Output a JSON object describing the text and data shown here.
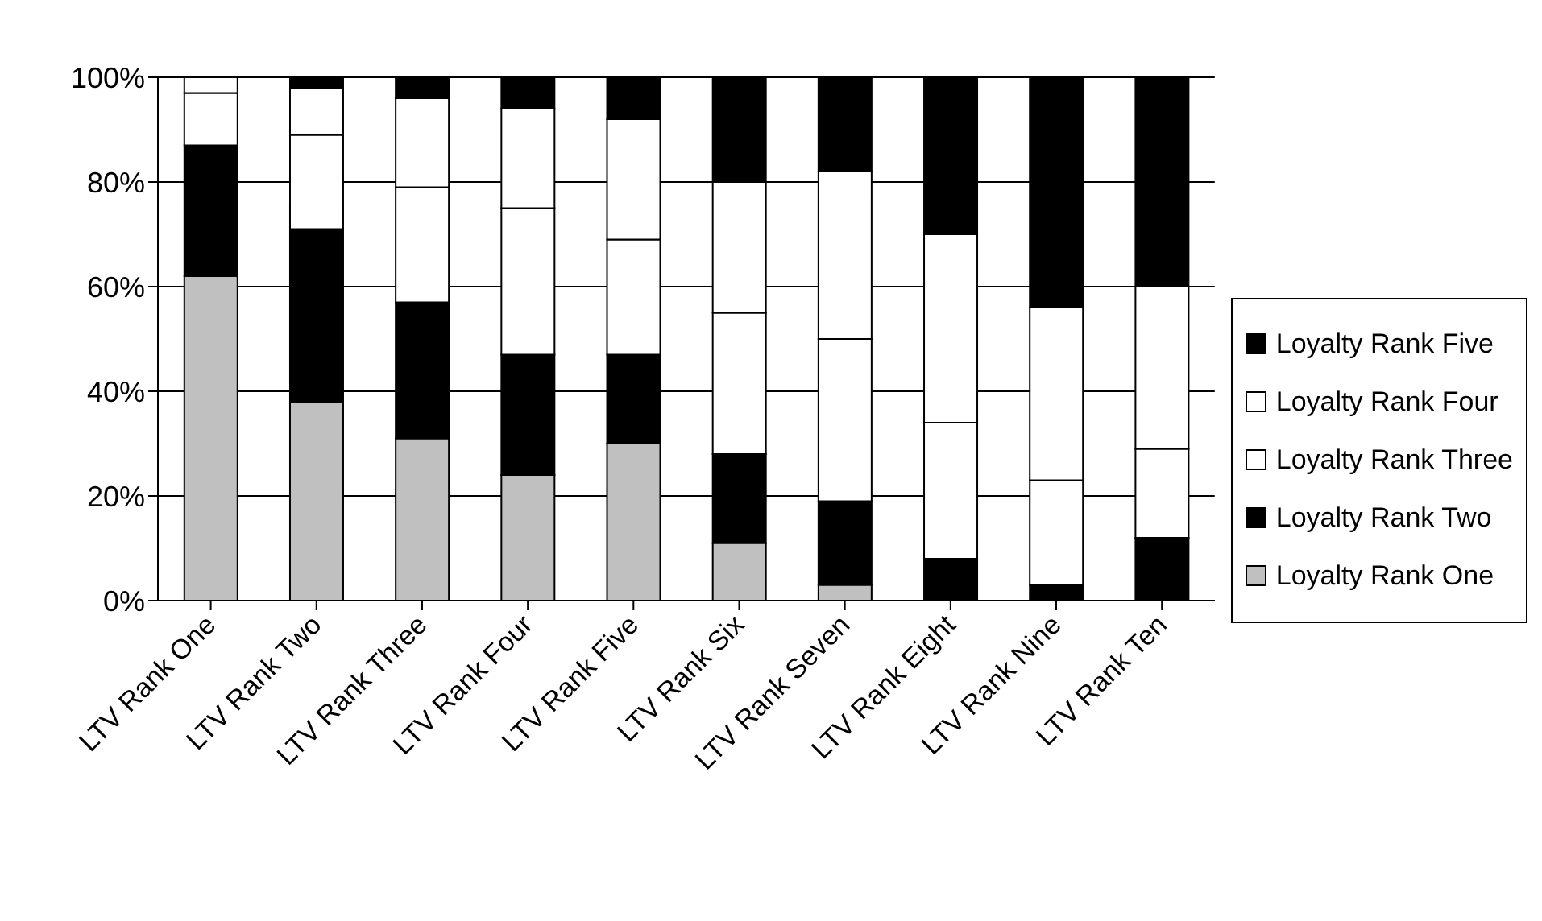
{
  "chart_data": {
    "type": "bar",
    "stacked": true,
    "categories": [
      "LTV Rank One",
      "LTV Rank Two",
      "LTV Rank Three",
      "LTV Rank Four",
      "LTV Rank Five",
      "LTV Rank Six",
      "LTV Rank Seven",
      "LTV Rank Eight",
      "LTV Rank Nine",
      "LTV Rank Ten"
    ],
    "series": [
      {
        "name": "Loyalty Rank One",
        "color": "#c0c0c0",
        "values": [
          62,
          38,
          31,
          24,
          30,
          11,
          3,
          0,
          0,
          0
        ]
      },
      {
        "name": "Loyalty Rank Two",
        "color": "#000000",
        "values": [
          25,
          33,
          26,
          23,
          17,
          17,
          16,
          8,
          3,
          12
        ]
      },
      {
        "name": "Loyalty Rank Three",
        "color": "#ffffff",
        "values": [
          10,
          18,
          22,
          28,
          22,
          27,
          31,
          26,
          20,
          17
        ]
      },
      {
        "name": "Loyalty Rank Four",
        "color": "#ffffff",
        "values": [
          3,
          9,
          17,
          19,
          23,
          25,
          32,
          36,
          33,
          31
        ]
      },
      {
        "name": "Loyalty Rank Five",
        "color": "#000000",
        "values": [
          0,
          2,
          4,
          6,
          8,
          20,
          18,
          30,
          44,
          40
        ]
      }
    ],
    "ylim": [
      0,
      100
    ],
    "yticks": [
      {
        "value": 0,
        "label": "0%"
      },
      {
        "value": 20,
        "label": "20%"
      },
      {
        "value": 40,
        "label": "40%"
      },
      {
        "value": 60,
        "label": "60%"
      },
      {
        "value": 80,
        "label": "80%"
      },
      {
        "value": 100,
        "label": "100%"
      }
    ],
    "grid": "y",
    "legend": "right"
  }
}
